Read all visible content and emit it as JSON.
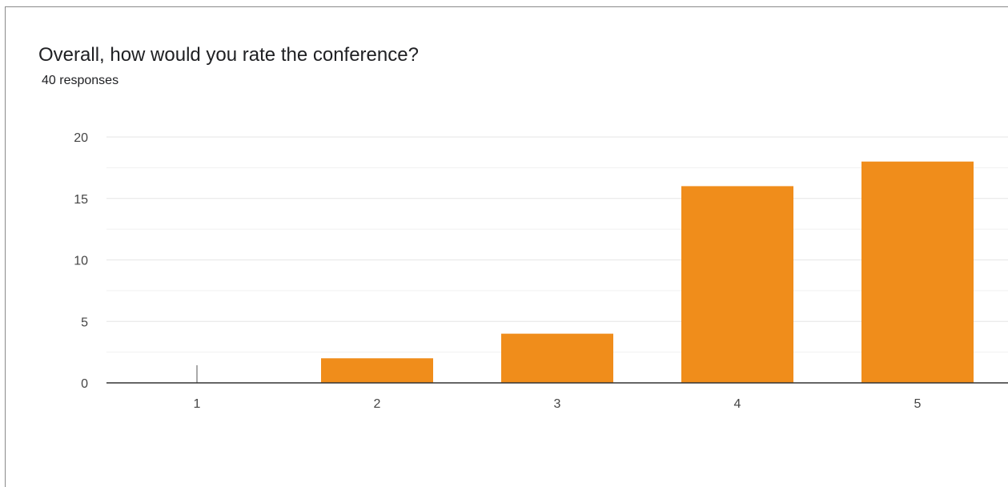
{
  "header": {
    "title": "Overall, how would you rate the conference?",
    "subtitle": "40 responses"
  },
  "chart_data": {
    "type": "bar",
    "title": "Overall, how would you rate the conference?",
    "subtitle": "40 responses",
    "categories": [
      "1",
      "2",
      "3",
      "4",
      "5"
    ],
    "values": [
      0,
      2,
      4,
      16,
      18
    ],
    "xlabel": "",
    "ylabel": "",
    "ylim": [
      0,
      20
    ],
    "yticks": [
      0,
      5,
      10,
      15,
      20
    ],
    "grid": true,
    "legend": "none",
    "bar_color": "#f08d1b"
  }
}
